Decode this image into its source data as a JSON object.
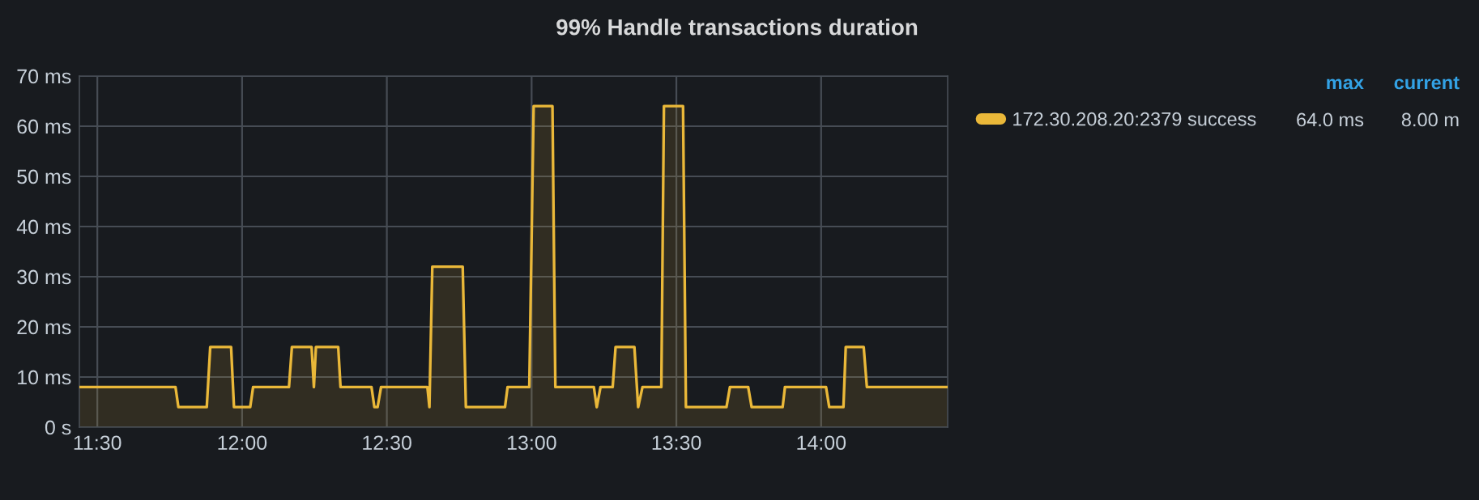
{
  "chart_data": {
    "type": "area",
    "title": "99% Handle transactions duration",
    "x": [
      11.438,
      11.77,
      11.78,
      11.878,
      11.89,
      11.962,
      11.972,
      12.028,
      12.038,
      12.162,
      12.172,
      12.24,
      12.248,
      12.255,
      12.332,
      12.34,
      12.447,
      12.457,
      12.468,
      12.48,
      12.64,
      12.647,
      12.657,
      12.762,
      12.773,
      12.908,
      12.917,
      12.992,
      13.007,
      13.072,
      13.082,
      13.215,
      13.225,
      13.238,
      13.28,
      13.29,
      13.355,
      13.368,
      13.383,
      13.448,
      13.457,
      13.523,
      13.533,
      13.673,
      13.685,
      13.748,
      13.76,
      13.867,
      13.875,
      14.017,
      14.028,
      14.077,
      14.085,
      14.147,
      14.158,
      14.437
    ],
    "series": [
      {
        "name": "172.30.208.20:2379 success",
        "color": "#eab839",
        "values": [
          8,
          8,
          4,
          4,
          16,
          16,
          4,
          4,
          8,
          8,
          16,
          16,
          8,
          16,
          16,
          8,
          8,
          4,
          4,
          8,
          8,
          4,
          32,
          32,
          4,
          4,
          8,
          8,
          64,
          64,
          8,
          8,
          4,
          8,
          8,
          16,
          16,
          4,
          8,
          8,
          64,
          64,
          4,
          4,
          8,
          8,
          4,
          4,
          8,
          8,
          4,
          4,
          16,
          16,
          8,
          8
        ]
      }
    ],
    "xlim": [
      11.438,
      14.437
    ],
    "xticks": [
      {
        "value": 11.5,
        "label": "11:30"
      },
      {
        "value": 12.0,
        "label": "12:00"
      },
      {
        "value": 12.5,
        "label": "12:30"
      },
      {
        "value": 13.0,
        "label": "13:00"
      },
      {
        "value": 13.5,
        "label": "13:30"
      },
      {
        "value": 14.0,
        "label": "14:00"
      }
    ],
    "ylim": [
      0,
      70
    ],
    "yticks": [
      {
        "value": 0,
        "label": "0 s"
      },
      {
        "value": 10,
        "label": "10 ms"
      },
      {
        "value": 20,
        "label": "20 ms"
      },
      {
        "value": 30,
        "label": "30 ms"
      },
      {
        "value": 40,
        "label": "40 ms"
      },
      {
        "value": 50,
        "label": "50 ms"
      },
      {
        "value": 60,
        "label": "60 ms"
      },
      {
        "value": 70,
        "label": "70 ms"
      }
    ],
    "grid": true,
    "legend": "right",
    "marker": "none",
    "line_style": "solid",
    "annotations": [
      "max",
      "current",
      "64.0 ms",
      "8.00 m"
    ]
  }
}
